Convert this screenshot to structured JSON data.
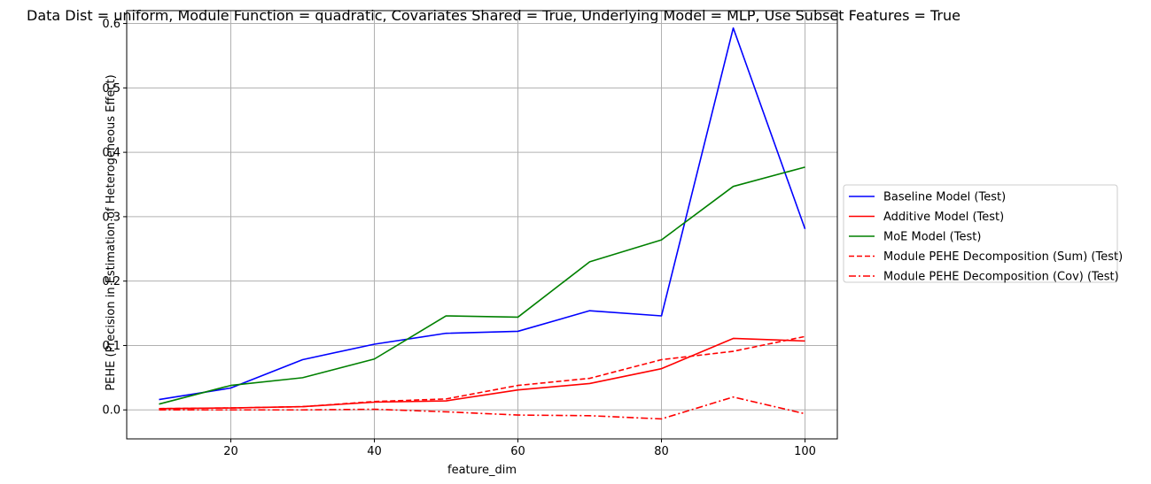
{
  "chart_data": {
    "type": "line",
    "title": "Data Dist = uniform, Module Function = quadratic, Covariates Shared = True, Underlying Model = MLP, Use Subset Features = True",
    "xlabel": "feature_dim",
    "ylabel": "PEHE (Precision in Estimation of Heterogeneous Effect)",
    "xlim": [
      5.5,
      104.5
    ],
    "ylim": [
      -0.045,
      0.62
    ],
    "xticks": [
      20,
      40,
      60,
      80,
      100
    ],
    "yticks": [
      0.0,
      0.1,
      0.2,
      0.3,
      0.4,
      0.5,
      0.6
    ],
    "grid": true,
    "legend_position": "center-right-outside",
    "x": [
      10,
      20,
      30,
      40,
      50,
      60,
      70,
      80,
      90,
      100
    ],
    "series": [
      {
        "name": "Baseline Model (Test)",
        "color": "#0000ff",
        "dash": "solid",
        "values": [
          0.016,
          0.034,
          0.078,
          0.102,
          0.119,
          0.122,
          0.154,
          0.146,
          0.593,
          0.281
        ]
      },
      {
        "name": "Additive Model (Test)",
        "color": "#ff0000",
        "dash": "solid",
        "values": [
          0.002,
          0.003,
          0.005,
          0.012,
          0.014,
          0.031,
          0.041,
          0.064,
          0.111,
          0.107
        ]
      },
      {
        "name": "MoE Model (Test)",
        "color": "#008000",
        "dash": "solid",
        "values": [
          0.009,
          0.038,
          0.05,
          0.079,
          0.146,
          0.144,
          0.23,
          0.264,
          0.347,
          0.377
        ]
      },
      {
        "name": "Module PEHE Decomposition (Sum) (Test)",
        "color": "#ff0000",
        "dash": "dashed",
        "values": [
          0.002,
          0.003,
          0.005,
          0.013,
          0.017,
          0.038,
          0.049,
          0.078,
          0.091,
          0.114
        ]
      },
      {
        "name": "Module PEHE Decomposition (Cov) (Test)",
        "color": "#ff0000",
        "dash": "dashdot",
        "values": [
          0.0,
          0.0,
          0.0,
          0.001,
          -0.003,
          -0.008,
          -0.009,
          -0.014,
          0.02,
          -0.006
        ]
      }
    ]
  }
}
